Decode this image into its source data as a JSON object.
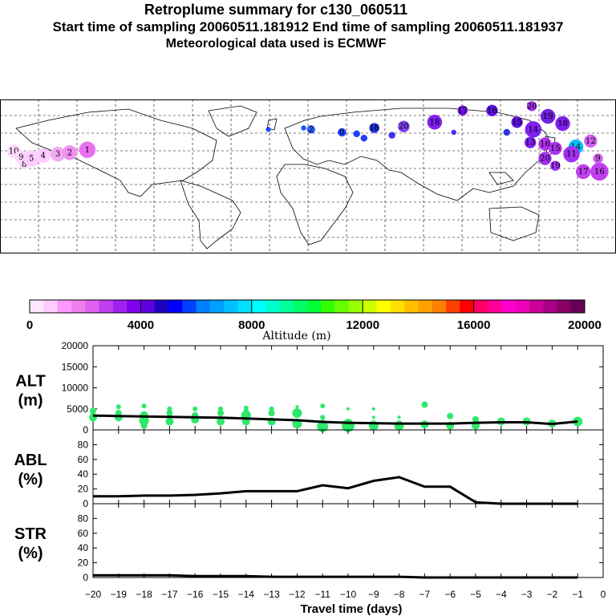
{
  "header": {
    "title": "Retroplume summary for c130_060511",
    "subtitle": "Start time of sampling 20060511.181912     End time of sampling 20060511.181937",
    "met": "Meteorological data used is ECMWF"
  },
  "colorbar": {
    "label": "Altitude (m)",
    "ticks": [
      "0",
      "4000",
      "8000",
      "12000",
      "16000",
      "20000"
    ],
    "colors": [
      "#ffe6ff",
      "#ffccff",
      "#ff99ff",
      "#f080f0",
      "#e060f0",
      "#c040f0",
      "#a020f0",
      "#8000f0",
      "#6000e0",
      "#2000c0",
      "#0000ff",
      "#0040ff",
      "#0080ff",
      "#00a0ff",
      "#00c0ff",
      "#00e0ff",
      "#00ffff",
      "#00ffcc",
      "#00ff99",
      "#00ff66",
      "#00ff33",
      "#33ff00",
      "#66ff00",
      "#99ff00",
      "#ccff00",
      "#ffff00",
      "#ffe000",
      "#ffc000",
      "#ffa000",
      "#ff8000",
      "#ff4000",
      "#ff0000",
      "#ff0066",
      "#ff0099",
      "#ff00cc",
      "#ee00bb",
      "#cc0099",
      "#aa0088",
      "#880066",
      "#660055"
    ]
  },
  "map": {
    "markers": [
      {
        "label": "10",
        "lon": -175,
        "lat": 2,
        "color": "#ffd8ff",
        "r": 8
      },
      {
        "label": "9",
        "lon": -170,
        "lat": -2,
        "color": "#ffd8ff",
        "r": 8
      },
      {
        "label": "8",
        "lon": -168,
        "lat": -7,
        "color": "#ffd8ff",
        "r": 6
      },
      {
        "label": "5",
        "lon": -163,
        "lat": -3,
        "color": "#ffccff",
        "r": 10
      },
      {
        "label": "4",
        "lon": -155,
        "lat": -1,
        "color": "#ffccff",
        "r": 9
      },
      {
        "label": "3",
        "lon": -145,
        "lat": 0,
        "color": "#f5a8f5",
        "r": 9
      },
      {
        "label": "2",
        "lon": -137,
        "lat": 1,
        "color": "#f090f0",
        "r": 9
      },
      {
        "label": "1",
        "lon": -125,
        "lat": 3,
        "color": "#e870f0",
        "r": 10
      },
      {
        "label": "",
        "lon": -2,
        "lat": 17,
        "color": "#2050ff",
        "r": 3
      },
      {
        "label": "",
        "lon": 22,
        "lat": 18,
        "color": "#2050ff",
        "r": 3
      },
      {
        "label": "2",
        "lon": 27,
        "lat": 17,
        "color": "#3060ff",
        "r": 5
      },
      {
        "label": "0",
        "lon": 48,
        "lat": 15,
        "color": "#2040ff",
        "r": 5
      },
      {
        "label": "",
        "lon": 58,
        "lat": 14,
        "color": "#2040ff",
        "r": 4
      },
      {
        "label": "",
        "lon": 63,
        "lat": 11,
        "color": "#2040ff",
        "r": 4
      },
      {
        "label": "18",
        "lon": 70,
        "lat": 18,
        "color": "#2030e0",
        "r": 6
      },
      {
        "label": "",
        "lon": 82,
        "lat": 13,
        "color": "#4030f0",
        "r": 4
      },
      {
        "label": "20",
        "lon": 90,
        "lat": 19,
        "color": "#8040f0",
        "r": 7
      },
      {
        "label": "18",
        "lon": 111,
        "lat": 22,
        "color": "#8020f0",
        "r": 9
      },
      {
        "label": "",
        "lon": 124,
        "lat": 15,
        "color": "#4030f0",
        "r": 3
      },
      {
        "label": "17",
        "lon": 130,
        "lat": 30,
        "color": "#7010e0",
        "r": 6
      },
      {
        "label": "16",
        "lon": 150,
        "lat": 30,
        "color": "#6010e0",
        "r": 7
      },
      {
        "label": "",
        "lon": 160,
        "lat": 15,
        "color": "#3030e0",
        "r": 4
      },
      {
        "label": "15",
        "lon": 167,
        "lat": 22,
        "color": "#6010e0",
        "r": 7
      },
      {
        "label": "20",
        "lon": 177,
        "lat": 33,
        "color": "#a030f0",
        "r": 6
      },
      {
        "label": "19",
        "lon": 188,
        "lat": 26,
        "color": "#7020e0",
        "r": 9
      },
      {
        "label": "18",
        "lon": 198,
        "lat": 21,
        "color": "#8020f0",
        "r": 9
      },
      {
        "label": "14",
        "lon": 178,
        "lat": 17,
        "color": "#8020f0",
        "r": 10
      },
      {
        "label": "13",
        "lon": 176,
        "lat": 8,
        "color": "#8020f0",
        "r": 7
      },
      {
        "label": "16",
        "lon": 186,
        "lat": 7,
        "color": "#b030f0",
        "r": 8
      },
      {
        "label": "15",
        "lon": 193,
        "lat": 4,
        "color": "#b030f0",
        "r": 8
      },
      {
        "label": "20",
        "lon": 186,
        "lat": -3,
        "color": "#a030f0",
        "r": 8
      },
      {
        "label": "19",
        "lon": 193,
        "lat": -8,
        "color": "#a030f0",
        "r": 6
      },
      {
        "label": "14",
        "lon": 207,
        "lat": 5,
        "color": "#00c0ff",
        "r": 9
      },
      {
        "label": "11",
        "lon": 204,
        "lat": 0,
        "color": "#a030f0",
        "r": 10
      },
      {
        "label": "12",
        "lon": 217,
        "lat": 9,
        "color": "#d060f0",
        "r": 8
      },
      {
        "label": "9",
        "lon": 222,
        "lat": -3,
        "color": "#d060f0",
        "r": 6
      },
      {
        "label": "17",
        "lon": 212,
        "lat": -12,
        "color": "#c040f0",
        "r": 9
      },
      {
        "label": "16",
        "lon": 223,
        "lat": -12,
        "color": "#c040f0",
        "r": 11
      }
    ]
  },
  "chart_data": [
    {
      "type": "scatter",
      "title": "ALT (m)",
      "ylabel_main": "ALT",
      "ylabel_unit": "(m)",
      "xlim": [
        -20,
        0
      ],
      "ylim": [
        0,
        20000
      ],
      "yticks": [
        0,
        5000,
        10000,
        15000,
        20000
      ],
      "median_line": {
        "x": [
          -20,
          -19,
          -18,
          -17,
          -16,
          -15,
          -14,
          -13,
          -12,
          -11,
          -10,
          -9,
          -8,
          -7,
          -6,
          -5,
          -4,
          -3,
          -2,
          -1
        ],
        "y": [
          3400,
          3300,
          3200,
          3100,
          3000,
          2900,
          2700,
          2500,
          2300,
          1900,
          1700,
          1600,
          1500,
          1500,
          1500,
          1700,
          1800,
          1800,
          1400,
          2000
        ]
      },
      "points": [
        {
          "x": -20,
          "y": 3000,
          "s": 5
        },
        {
          "x": -20,
          "y": 4500,
          "s": 4
        },
        {
          "x": -20,
          "y": 2500,
          "s": 3
        },
        {
          "x": -19,
          "y": 5500,
          "s": 3
        },
        {
          "x": -19,
          "y": 3000,
          "s": 5
        },
        {
          "x": -19,
          "y": 4000,
          "s": 4
        },
        {
          "x": -18,
          "y": 5700,
          "s": 3
        },
        {
          "x": -18,
          "y": 3500,
          "s": 5
        },
        {
          "x": -18,
          "y": 2200,
          "s": 6
        },
        {
          "x": -18,
          "y": 1000,
          "s": 4
        },
        {
          "x": -17,
          "y": 5000,
          "s": 3
        },
        {
          "x": -17,
          "y": 4000,
          "s": 4
        },
        {
          "x": -17,
          "y": 2000,
          "s": 5
        },
        {
          "x": -16,
          "y": 5000,
          "s": 3
        },
        {
          "x": -16,
          "y": 2500,
          "s": 5
        },
        {
          "x": -16,
          "y": 3500,
          "s": 4
        },
        {
          "x": -15,
          "y": 5000,
          "s": 3
        },
        {
          "x": -15,
          "y": 4000,
          "s": 4
        },
        {
          "x": -15,
          "y": 2000,
          "s": 5
        },
        {
          "x": -14,
          "y": 5200,
          "s": 3
        },
        {
          "x": -14,
          "y": 3500,
          "s": 6
        },
        {
          "x": -14,
          "y": 2000,
          "s": 5
        },
        {
          "x": -14,
          "y": 4500,
          "s": 3
        },
        {
          "x": -13,
          "y": 5000,
          "s": 3
        },
        {
          "x": -13,
          "y": 4000,
          "s": 4
        },
        {
          "x": -13,
          "y": 2000,
          "s": 5
        },
        {
          "x": -12,
          "y": 5500,
          "s": 2
        },
        {
          "x": -12,
          "y": 4000,
          "s": 6
        },
        {
          "x": -12,
          "y": 1500,
          "s": 6
        },
        {
          "x": -11,
          "y": 5700,
          "s": 3
        },
        {
          "x": -11,
          "y": 3000,
          "s": 3
        },
        {
          "x": -11,
          "y": 1500,
          "s": 5
        },
        {
          "x": -11,
          "y": 800,
          "s": 7
        },
        {
          "x": -10,
          "y": 5000,
          "s": 2
        },
        {
          "x": -10,
          "y": 1500,
          "s": 6
        },
        {
          "x": -10,
          "y": 1000,
          "s": 8
        },
        {
          "x": -9,
          "y": 5000,
          "s": 2
        },
        {
          "x": -9,
          "y": 3000,
          "s": 2
        },
        {
          "x": -9,
          "y": 1500,
          "s": 4
        },
        {
          "x": -9,
          "y": 1000,
          "s": 6
        },
        {
          "x": -8,
          "y": 3000,
          "s": 2
        },
        {
          "x": -8,
          "y": 1500,
          "s": 4
        },
        {
          "x": -8,
          "y": 1000,
          "s": 6
        },
        {
          "x": -7,
          "y": 6000,
          "s": 4
        },
        {
          "x": -7,
          "y": 1300,
          "s": 5
        },
        {
          "x": -6,
          "y": 3300,
          "s": 4
        },
        {
          "x": -6,
          "y": 1000,
          "s": 5
        },
        {
          "x": -5,
          "y": 2500,
          "s": 4
        },
        {
          "x": -5,
          "y": 1000,
          "s": 5
        },
        {
          "x": -4,
          "y": 2000,
          "s": 5
        },
        {
          "x": -3,
          "y": 2000,
          "s": 5
        },
        {
          "x": -2,
          "y": 1500,
          "s": 5
        },
        {
          "x": -1,
          "y": 2000,
          "s": 6
        }
      ]
    },
    {
      "type": "line",
      "title": "ABL (%)",
      "ylabel_main": "ABL",
      "ylabel_unit": "(%)",
      "xlim": [
        -20,
        0
      ],
      "ylim": [
        0,
        100
      ],
      "yticks": [
        0,
        20,
        40,
        60,
        80
      ],
      "x": [
        -20,
        -19,
        -18,
        -17,
        -16,
        -15,
        -14,
        -13,
        -12,
        -11,
        -10,
        -9,
        -8,
        -7,
        -6,
        -5,
        -4,
        -3,
        -2,
        -1
      ],
      "values": [
        10,
        10,
        11,
        11,
        12,
        14,
        17,
        17,
        17,
        25,
        21,
        31,
        36,
        23,
        23,
        2,
        0,
        0,
        0,
        0
      ]
    },
    {
      "type": "line",
      "title": "STR (%)",
      "ylabel_main": "STR",
      "ylabel_unit": "(%)",
      "xlim": [
        -20,
        0
      ],
      "ylim": [
        0,
        100
      ],
      "yticks": [
        0,
        20,
        40,
        60,
        80
      ],
      "x": [
        -20,
        -19,
        -18,
        -17,
        -16,
        -15,
        -14,
        -13,
        -12,
        -11,
        -10,
        -9,
        -8,
        -7,
        -6,
        -5,
        -4,
        -3,
        -2,
        -1
      ],
      "values": [
        3,
        3,
        3,
        3,
        2,
        2,
        2,
        1,
        1,
        1,
        1,
        1,
        1,
        0,
        0,
        0,
        0,
        0,
        0,
        0
      ],
      "xlabel": "Travel time (days)",
      "xtick_labels": [
        "−20",
        "−19",
        "−18",
        "−17",
        "−16",
        "−15",
        "−14",
        "−13",
        "−12",
        "−11",
        "−10",
        "−9",
        "−8",
        "−7",
        "−6",
        "−5",
        "−4",
        "−3",
        "−2",
        "−1",
        "0"
      ]
    }
  ]
}
